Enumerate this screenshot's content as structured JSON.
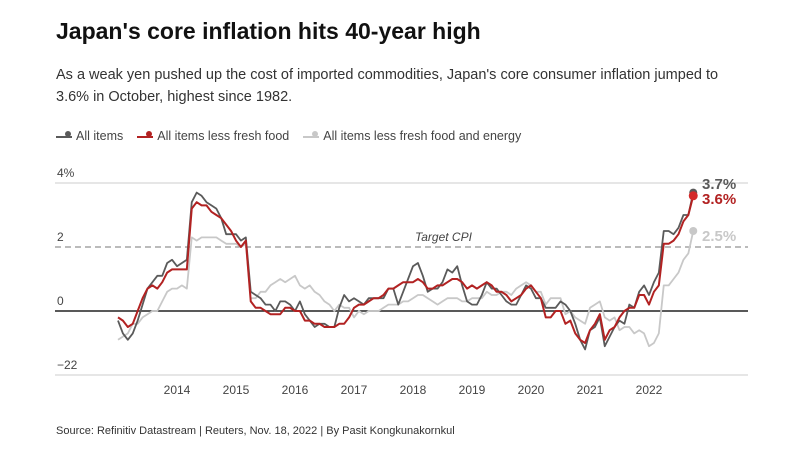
{
  "title": "Japan's core inflation hits 40-year high",
  "subtitle": "As a weak yen pushed up the cost of imported commodities, Japan's core consumer inflation jumped to 3.6% in October, highest since 1982.",
  "source": "Source: Refinitiv Datastream | Reuters, Nov. 18, 2022 | By Pasit Kongkunakornkul",
  "chart_data": {
    "type": "line",
    "title": "Japan's core inflation hits 40-year high",
    "ylim": [
      -2,
      4
    ],
    "xlim": [
      "2013-01",
      "2022-10"
    ],
    "y_ticks": [
      {
        "value": 4,
        "label": "4%"
      },
      {
        "value": 2,
        "label": "2"
      },
      {
        "value": 0,
        "label": "0"
      },
      {
        "value": -2,
        "label": "-2"
      }
    ],
    "x_ticks": [
      "2014",
      "2015",
      "2016",
      "2017",
      "2018",
      "2019",
      "2020",
      "2021",
      "2022"
    ],
    "grid": true,
    "legend_position": "top-left",
    "reference_line": {
      "value": 2,
      "label": "Target CPI",
      "style": "dashed"
    },
    "start": "2013-01",
    "frequency": "monthly",
    "series": [
      {
        "name": "All items less fresh food and energy",
        "color": "#c8c8c8",
        "end_label": "2.5%",
        "values": [
          -0.9,
          -0.8,
          -0.7,
          -0.4,
          -0.4,
          -0.2,
          -0.1,
          0.0,
          0.0,
          0.3,
          0.6,
          0.7,
          0.7,
          0.8,
          0.7,
          2.3,
          2.2,
          2.3,
          2.3,
          2.3,
          2.3,
          2.2,
          2.1,
          2.1,
          2.1,
          2.0,
          2.1,
          0.4,
          0.4,
          0.6,
          0.6,
          0.8,
          0.9,
          1.0,
          0.9,
          1.0,
          1.1,
          0.8,
          0.7,
          0.8,
          0.6,
          0.5,
          0.3,
          0.2,
          0.0,
          0.2,
          0.1,
          0.1,
          -0.2,
          0.0,
          -0.1,
          0.0,
          0.0,
          0.0,
          0.1,
          0.2,
          0.2,
          0.2,
          0.3,
          0.3,
          0.4,
          0.5,
          0.5,
          0.4,
          0.3,
          0.2,
          0.3,
          0.4,
          0.4,
          0.4,
          0.3,
          0.3,
          0.4,
          0.4,
          0.4,
          0.6,
          0.5,
          0.5,
          0.6,
          0.6,
          0.5,
          0.7,
          0.8,
          0.9,
          0.8,
          0.6,
          0.6,
          0.2,
          0.4,
          0.4,
          0.4,
          -0.1,
          0.0,
          -0.2,
          -0.3,
          -0.4,
          0.1,
          0.2,
          0.3,
          -0.2,
          -0.3,
          -0.2,
          -0.6,
          -0.5,
          -0.5,
          -0.7,
          -0.6,
          -0.7,
          -1.1,
          -1.0,
          -0.7,
          0.8,
          0.8,
          1.0,
          1.2,
          1.6,
          1.8,
          2.5
        ]
      },
      {
        "name": "All items",
        "color": "#5a5a5a",
        "end_label": "3.7%",
        "values": [
          -0.3,
          -0.7,
          -0.9,
          -0.7,
          -0.3,
          0.2,
          0.7,
          0.9,
          1.1,
          1.1,
          1.5,
          1.6,
          1.4,
          1.5,
          1.6,
          3.4,
          3.7,
          3.6,
          3.4,
          3.3,
          3.2,
          2.9,
          2.4,
          2.4,
          2.4,
          2.2,
          2.3,
          0.6,
          0.5,
          0.4,
          0.2,
          0.2,
          0.0,
          0.3,
          0.3,
          0.2,
          0.0,
          0.3,
          -0.1,
          -0.3,
          -0.5,
          -0.4,
          -0.4,
          -0.5,
          -0.5,
          0.1,
          0.5,
          0.3,
          0.4,
          0.3,
          0.2,
          0.4,
          0.4,
          0.4,
          0.4,
          0.7,
          0.7,
          0.2,
          0.6,
          1.0,
          1.4,
          1.5,
          1.1,
          0.6,
          0.7,
          0.7,
          0.9,
          1.3,
          1.2,
          1.4,
          0.8,
          0.3,
          0.2,
          0.2,
          0.5,
          0.9,
          0.7,
          0.7,
          0.5,
          0.3,
          0.2,
          0.2,
          0.5,
          0.8,
          0.7,
          0.4,
          0.4,
          0.1,
          0.1,
          0.1,
          0.3,
          0.2,
          0.0,
          -0.4,
          -0.9,
          -1.2,
          -0.6,
          -0.5,
          -0.2,
          -1.1,
          -0.8,
          -0.5,
          -0.3,
          -0.4,
          0.2,
          0.1,
          0.6,
          0.8,
          0.5,
          0.9,
          1.2,
          2.5,
          2.5,
          2.4,
          2.6,
          3.0,
          3.0,
          3.7
        ]
      },
      {
        "name": "All items less fresh food",
        "color": "#b22222",
        "end_label": "3.6%",
        "values": [
          -0.2,
          -0.3,
          -0.5,
          -0.4,
          0.0,
          0.4,
          0.7,
          0.8,
          0.7,
          0.9,
          1.2,
          1.3,
          1.3,
          1.3,
          1.3,
          3.2,
          3.4,
          3.3,
          3.3,
          3.1,
          3.0,
          2.9,
          2.7,
          2.5,
          2.2,
          2.0,
          2.2,
          0.3,
          0.1,
          0.1,
          0.0,
          -0.1,
          -0.1,
          -0.1,
          0.1,
          0.1,
          0.0,
          0.0,
          -0.3,
          -0.3,
          -0.4,
          -0.4,
          -0.5,
          -0.5,
          -0.5,
          -0.4,
          -0.4,
          -0.2,
          0.1,
          0.2,
          0.2,
          0.3,
          0.4,
          0.4,
          0.5,
          0.7,
          0.7,
          0.8,
          0.9,
          0.9,
          0.9,
          1.0,
          0.9,
          0.7,
          0.7,
          0.8,
          0.8,
          0.9,
          1.0,
          1.0,
          0.9,
          0.7,
          0.8,
          0.7,
          0.8,
          0.9,
          0.8,
          0.6,
          0.6,
          0.5,
          0.3,
          0.4,
          0.5,
          0.7,
          0.8,
          0.6,
          0.4,
          -0.2,
          -0.2,
          0.0,
          0.0,
          -0.4,
          -0.3,
          -0.7,
          -0.9,
          -1.0,
          -0.6,
          -0.4,
          -0.1,
          -0.9,
          -0.6,
          -0.5,
          -0.2,
          0.0,
          0.1,
          0.1,
          0.5,
          0.5,
          0.2,
          0.6,
          0.8,
          2.1,
          2.1,
          2.2,
          2.4,
          2.8,
          3.0,
          3.6
        ]
      }
    ]
  },
  "legend": [
    {
      "label": "All items",
      "color": "#5a5a5a"
    },
    {
      "label": "All items less fresh food",
      "color": "#b22222"
    },
    {
      "label": "All items less fresh food and energy",
      "color": "#c8c8c8"
    }
  ]
}
